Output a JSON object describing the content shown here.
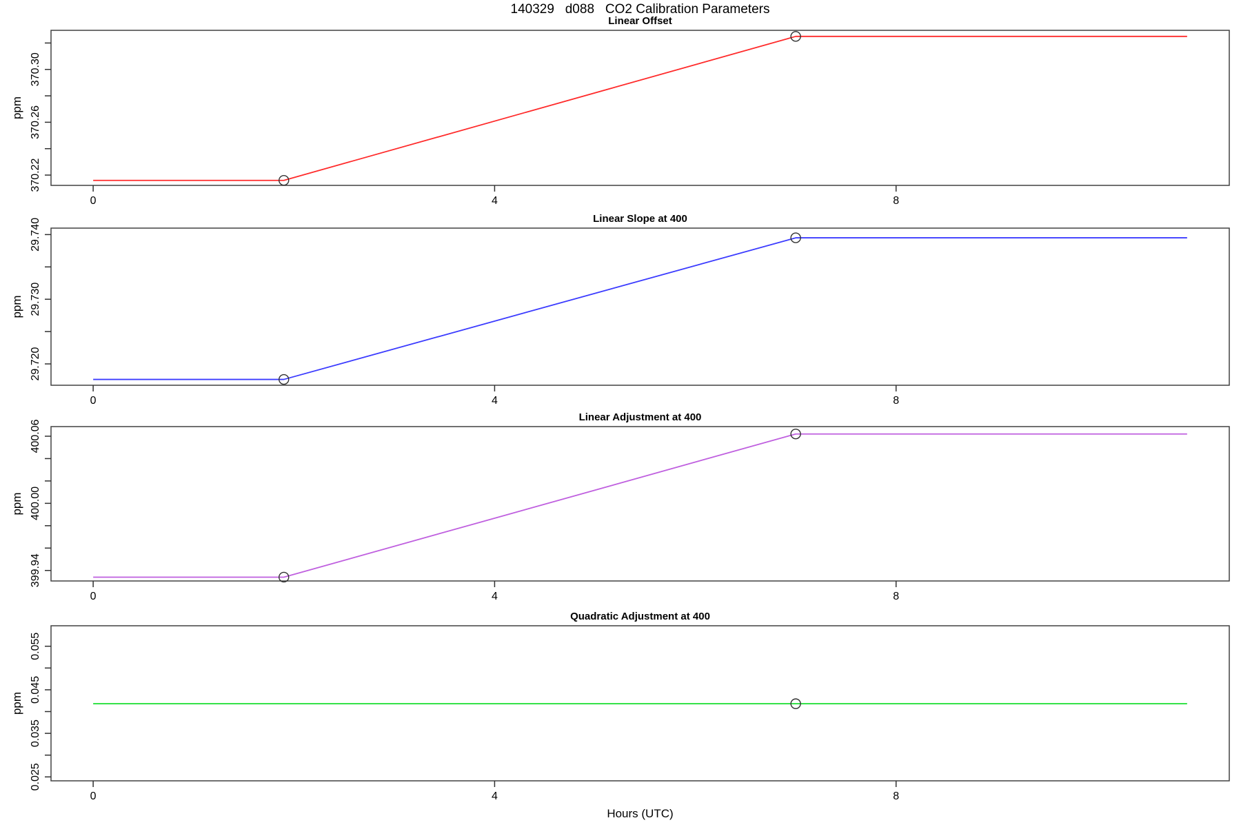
{
  "header": {
    "title": "140329   d088   CO2 Calibration Parameters"
  },
  "footer": {
    "xlabel": "Hours (UTC)"
  },
  "marker": {
    "shape": "open-circle",
    "color": "#303030"
  },
  "axis_color": "#000000",
  "chart_data": [
    {
      "type": "line",
      "title": "Linear Offset",
      "ylabel": "ppm",
      "color": "#ff2a2a",
      "x": [
        0.0,
        1.9,
        7.0,
        10.9
      ],
      "y": [
        370.216,
        370.216,
        370.325,
        370.325
      ],
      "markers": [
        [
          1.9,
          370.216
        ],
        [
          7.0,
          370.325
        ]
      ],
      "xlim": [
        -0.42,
        11.32
      ],
      "ylim": [
        370.2122,
        370.3296
      ],
      "xticks": [
        0,
        4,
        8
      ],
      "xtick_labels": [
        "0",
        "4",
        "8"
      ],
      "yticks": [
        370.22,
        370.24,
        370.26,
        370.28,
        370.3,
        370.32
      ],
      "ytick_labels": [
        "370.22",
        "",
        "370.26",
        "",
        "370.30",
        ""
      ],
      "grid": false,
      "legend": "none"
    },
    {
      "type": "line",
      "title": "Linear Slope at 400",
      "ylabel": "ppm",
      "color": "#3b3bff",
      "x": [
        0.0,
        1.9,
        7.0,
        10.9
      ],
      "y": [
        29.7176,
        29.7176,
        29.7395,
        29.7395
      ],
      "markers": [
        [
          1.9,
          29.7176
        ],
        [
          7.0,
          29.7395
        ]
      ],
      "xlim": [
        -0.42,
        11.32
      ],
      "ylim": [
        29.7167,
        29.741
      ],
      "xticks": [
        0,
        4,
        8
      ],
      "xtick_labels": [
        "0",
        "4",
        "8"
      ],
      "yticks": [
        29.72,
        29.725,
        29.73,
        29.735,
        29.74
      ],
      "ytick_labels": [
        "29.720",
        "",
        "29.730",
        "",
        "29.740"
      ],
      "grid": false,
      "legend": "none"
    },
    {
      "type": "line",
      "title": "Linear Adjustment at 400",
      "ylabel": "ppm",
      "color": "#bf5fdf",
      "x": [
        0.0,
        1.9,
        7.0,
        10.9
      ],
      "y": [
        399.934,
        399.934,
        400.062,
        400.062
      ],
      "markers": [
        [
          1.9,
          399.934
        ],
        [
          7.0,
          400.062
        ]
      ],
      "xlim": [
        -0.42,
        11.32
      ],
      "ylim": [
        399.9306,
        400.0686
      ],
      "xticks": [
        0,
        4,
        8
      ],
      "xtick_labels": [
        "0",
        "4",
        "8"
      ],
      "yticks": [
        399.94,
        399.96,
        399.98,
        400.0,
        400.02,
        400.04,
        400.06
      ],
      "ytick_labels": [
        "399.94",
        "",
        "",
        "400.00",
        "",
        "",
        "400.06"
      ],
      "grid": false,
      "legend": "none"
    },
    {
      "type": "line",
      "title": "Quadratic Adjustment at 400",
      "ylabel": "ppm",
      "color": "#16dd2d",
      "x": [
        0.0,
        10.9
      ],
      "y": [
        0.0418,
        0.0418
      ],
      "markers": [
        [
          7.0,
          0.0418
        ]
      ],
      "xlim": [
        -0.42,
        11.32
      ],
      "ylim": [
        0.0241,
        0.0597
      ],
      "xticks": [
        0,
        4,
        8
      ],
      "xtick_labels": [
        "0",
        "4",
        "8"
      ],
      "yticks": [
        0.025,
        0.03,
        0.035,
        0.04,
        0.045,
        0.05,
        0.055
      ],
      "ytick_labels": [
        "0.025",
        "",
        "0.035",
        "",
        "0.045",
        "",
        "0.055"
      ],
      "grid": false,
      "legend": "none"
    }
  ]
}
